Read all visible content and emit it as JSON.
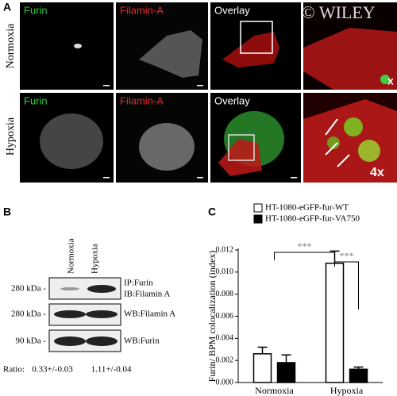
{
  "panel_a": {
    "label": "A",
    "watermark": "© WILEY",
    "rows": [
      {
        "label": "Normoxia",
        "channels": [
          "Furin",
          "Filamin-A",
          "Overlay"
        ],
        "zoom": "x"
      },
      {
        "label": "Hypoxia",
        "channels": [
          "Furin",
          "Filamin-A",
          "Overlay"
        ],
        "zoom": "4x"
      }
    ]
  },
  "panel_b": {
    "label": "B",
    "columns": [
      "Normoxia",
      "Hypoxia"
    ],
    "blots": [
      {
        "size": "280 kDa -",
        "labels": [
          "IP:Furin",
          "IB:Filamin A"
        ]
      },
      {
        "size": "280 kDa -",
        "labels": [
          "WB:Filamin A"
        ]
      },
      {
        "size": "90 kDa -",
        "labels": [
          "WB:Furin"
        ]
      }
    ],
    "ratio_label": "Ratio:",
    "ratios": [
      "0.33+/-0.03",
      "1.11+/-0.04"
    ]
  },
  "chart_data": {
    "type": "bar",
    "panel_label": "C",
    "y_label": "Furin/ BPM colocalization (index)",
    "categories": [
      "Normoxia",
      "Hypoxia"
    ],
    "series": [
      {
        "name": "HT-1080-eGFP-fur-WT",
        "color": "#ffffff",
        "values": [
          0.0026,
          0.0108
        ],
        "errors": [
          0.0006,
          0.0011
        ]
      },
      {
        "name": "HT-1080-eGFP-fur-VA750",
        "color": "#000000",
        "values": [
          0.0018,
          0.0012
        ],
        "errors": [
          0.0007,
          0.0002
        ]
      }
    ],
    "ylim": [
      0,
      0.012
    ],
    "yticks": [
      {
        "value": 0,
        "label": "0.000"
      },
      0.002,
      0.004,
      0.006,
      0.008,
      {
        "value": 0.01,
        "label": "0.010"
      },
      0.012
    ],
    "annotations": [
      "***",
      "***"
    ]
  }
}
